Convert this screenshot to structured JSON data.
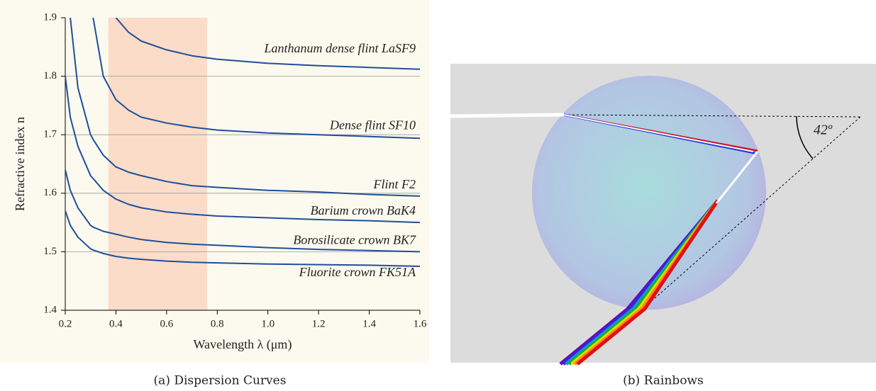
{
  "chart_data": {
    "type": "line",
    "x_label": "Wavelength λ (μm)",
    "y_label": "Refractive index n",
    "x": [
      0.2,
      0.22,
      0.25,
      0.3,
      0.31,
      0.35,
      0.4,
      0.45,
      0.5,
      0.6,
      0.7,
      0.8,
      1.0,
      1.2,
      1.4,
      1.6
    ],
    "series": [
      {
        "name": "Lanthanum dense flint LaSF9",
        "color": "#1f4e9c",
        "values": [
          null,
          null,
          null,
          null,
          null,
          null,
          1.9,
          1.875,
          1.86,
          1.845,
          1.835,
          1.829,
          1.822,
          1.818,
          1.815,
          1.812
        ]
      },
      {
        "name": "Dense flint SF10",
        "color": "#1f4e9c",
        "values": [
          null,
          null,
          null,
          null,
          1.9,
          1.8,
          1.76,
          1.742,
          1.73,
          1.72,
          1.713,
          1.708,
          1.703,
          1.7,
          1.697,
          1.694
        ]
      },
      {
        "name": "Flint F2",
        "color": "#1f4e9c",
        "values": [
          null,
          1.9,
          1.78,
          1.7,
          1.692,
          1.665,
          1.645,
          1.636,
          1.63,
          1.62,
          1.613,
          1.61,
          1.605,
          1.602,
          1.598,
          1.595
        ]
      },
      {
        "name": "Barium crown BaK4",
        "color": "#1f4e9c",
        "values": [
          1.8,
          1.73,
          1.68,
          1.63,
          1.625,
          1.605,
          1.59,
          1.581,
          1.575,
          1.568,
          1.564,
          1.561,
          1.558,
          1.555,
          1.553,
          1.55
        ]
      },
      {
        "name": "Borosilicate crown BK7",
        "color": "#1f4e9c",
        "values": [
          1.64,
          1.605,
          1.575,
          1.545,
          1.542,
          1.535,
          1.53,
          1.525,
          1.521,
          1.516,
          1.513,
          1.511,
          1.507,
          1.504,
          1.502,
          1.5
        ]
      },
      {
        "name": "Fluorite crown FK51A",
        "color": "#1f4e9c",
        "values": [
          1.57,
          1.545,
          1.525,
          1.505,
          1.503,
          1.497,
          1.492,
          1.489,
          1.487,
          1.484,
          1.482,
          1.481,
          1.479,
          1.478,
          1.477,
          1.475
        ]
      }
    ],
    "xlim": [
      0.2,
      1.6
    ],
    "ylim": [
      1.4,
      1.9
    ],
    "xticks": [
      0.2,
      0.4,
      0.6,
      0.8,
      {
        "value": 1,
        "label": "1.0"
      },
      1.2,
      1.4,
      1.6
    ],
    "yticks": [
      1.4,
      1.5,
      1.6,
      1.7,
      1.8,
      1.9
    ],
    "highlight_range": [
      0.37,
      0.76
    ],
    "highlight_color": "#fbdcc8",
    "grid": true
  },
  "diagram": {
    "angle_label": "42º"
  },
  "captions": [
    "(a) Dispersion Curves",
    "(b) Rainbows"
  ]
}
